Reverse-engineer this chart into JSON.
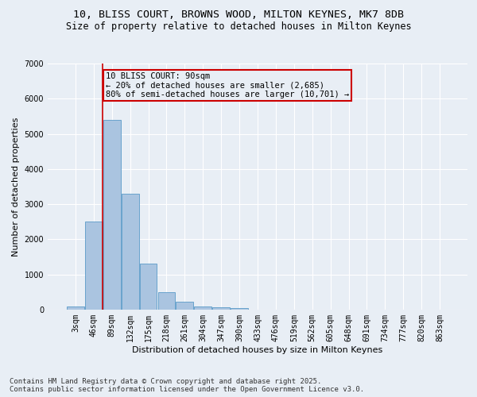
{
  "title_line1": "10, BLISS COURT, BROWNS WOOD, MILTON KEYNES, MK7 8DB",
  "title_line2": "Size of property relative to detached houses in Milton Keynes",
  "xlabel": "Distribution of detached houses by size in Milton Keynes",
  "ylabel": "Number of detached properties",
  "categories": [
    "3sqm",
    "46sqm",
    "89sqm",
    "132sqm",
    "175sqm",
    "218sqm",
    "261sqm",
    "304sqm",
    "347sqm",
    "390sqm",
    "433sqm",
    "476sqm",
    "519sqm",
    "562sqm",
    "605sqm",
    "648sqm",
    "691sqm",
    "734sqm",
    "777sqm",
    "820sqm",
    "863sqm"
  ],
  "values": [
    100,
    2500,
    5400,
    3300,
    1300,
    500,
    220,
    100,
    70,
    50,
    0,
    0,
    0,
    0,
    0,
    0,
    0,
    0,
    0,
    0,
    0
  ],
  "bar_color": "#aac4e0",
  "bar_edge_color": "#5a9ac8",
  "vline_color": "#cc0000",
  "annotation_text": "10 BLISS COURT: 90sqm\n← 20% of detached houses are smaller (2,685)\n80% of semi-detached houses are larger (10,701) →",
  "annotation_box_color": "#cc0000",
  "ylim": [
    0,
    7000
  ],
  "yticks": [
    0,
    1000,
    2000,
    3000,
    4000,
    5000,
    6000,
    7000
  ],
  "background_color": "#e8eef5",
  "grid_color": "#ffffff",
  "footer_line1": "Contains HM Land Registry data © Crown copyright and database right 2025.",
  "footer_line2": "Contains public sector information licensed under the Open Government Licence v3.0.",
  "title_fontsize": 9.5,
  "subtitle_fontsize": 8.5,
  "axis_label_fontsize": 8,
  "tick_fontsize": 7,
  "annotation_fontsize": 7.5,
  "footer_fontsize": 6.5
}
